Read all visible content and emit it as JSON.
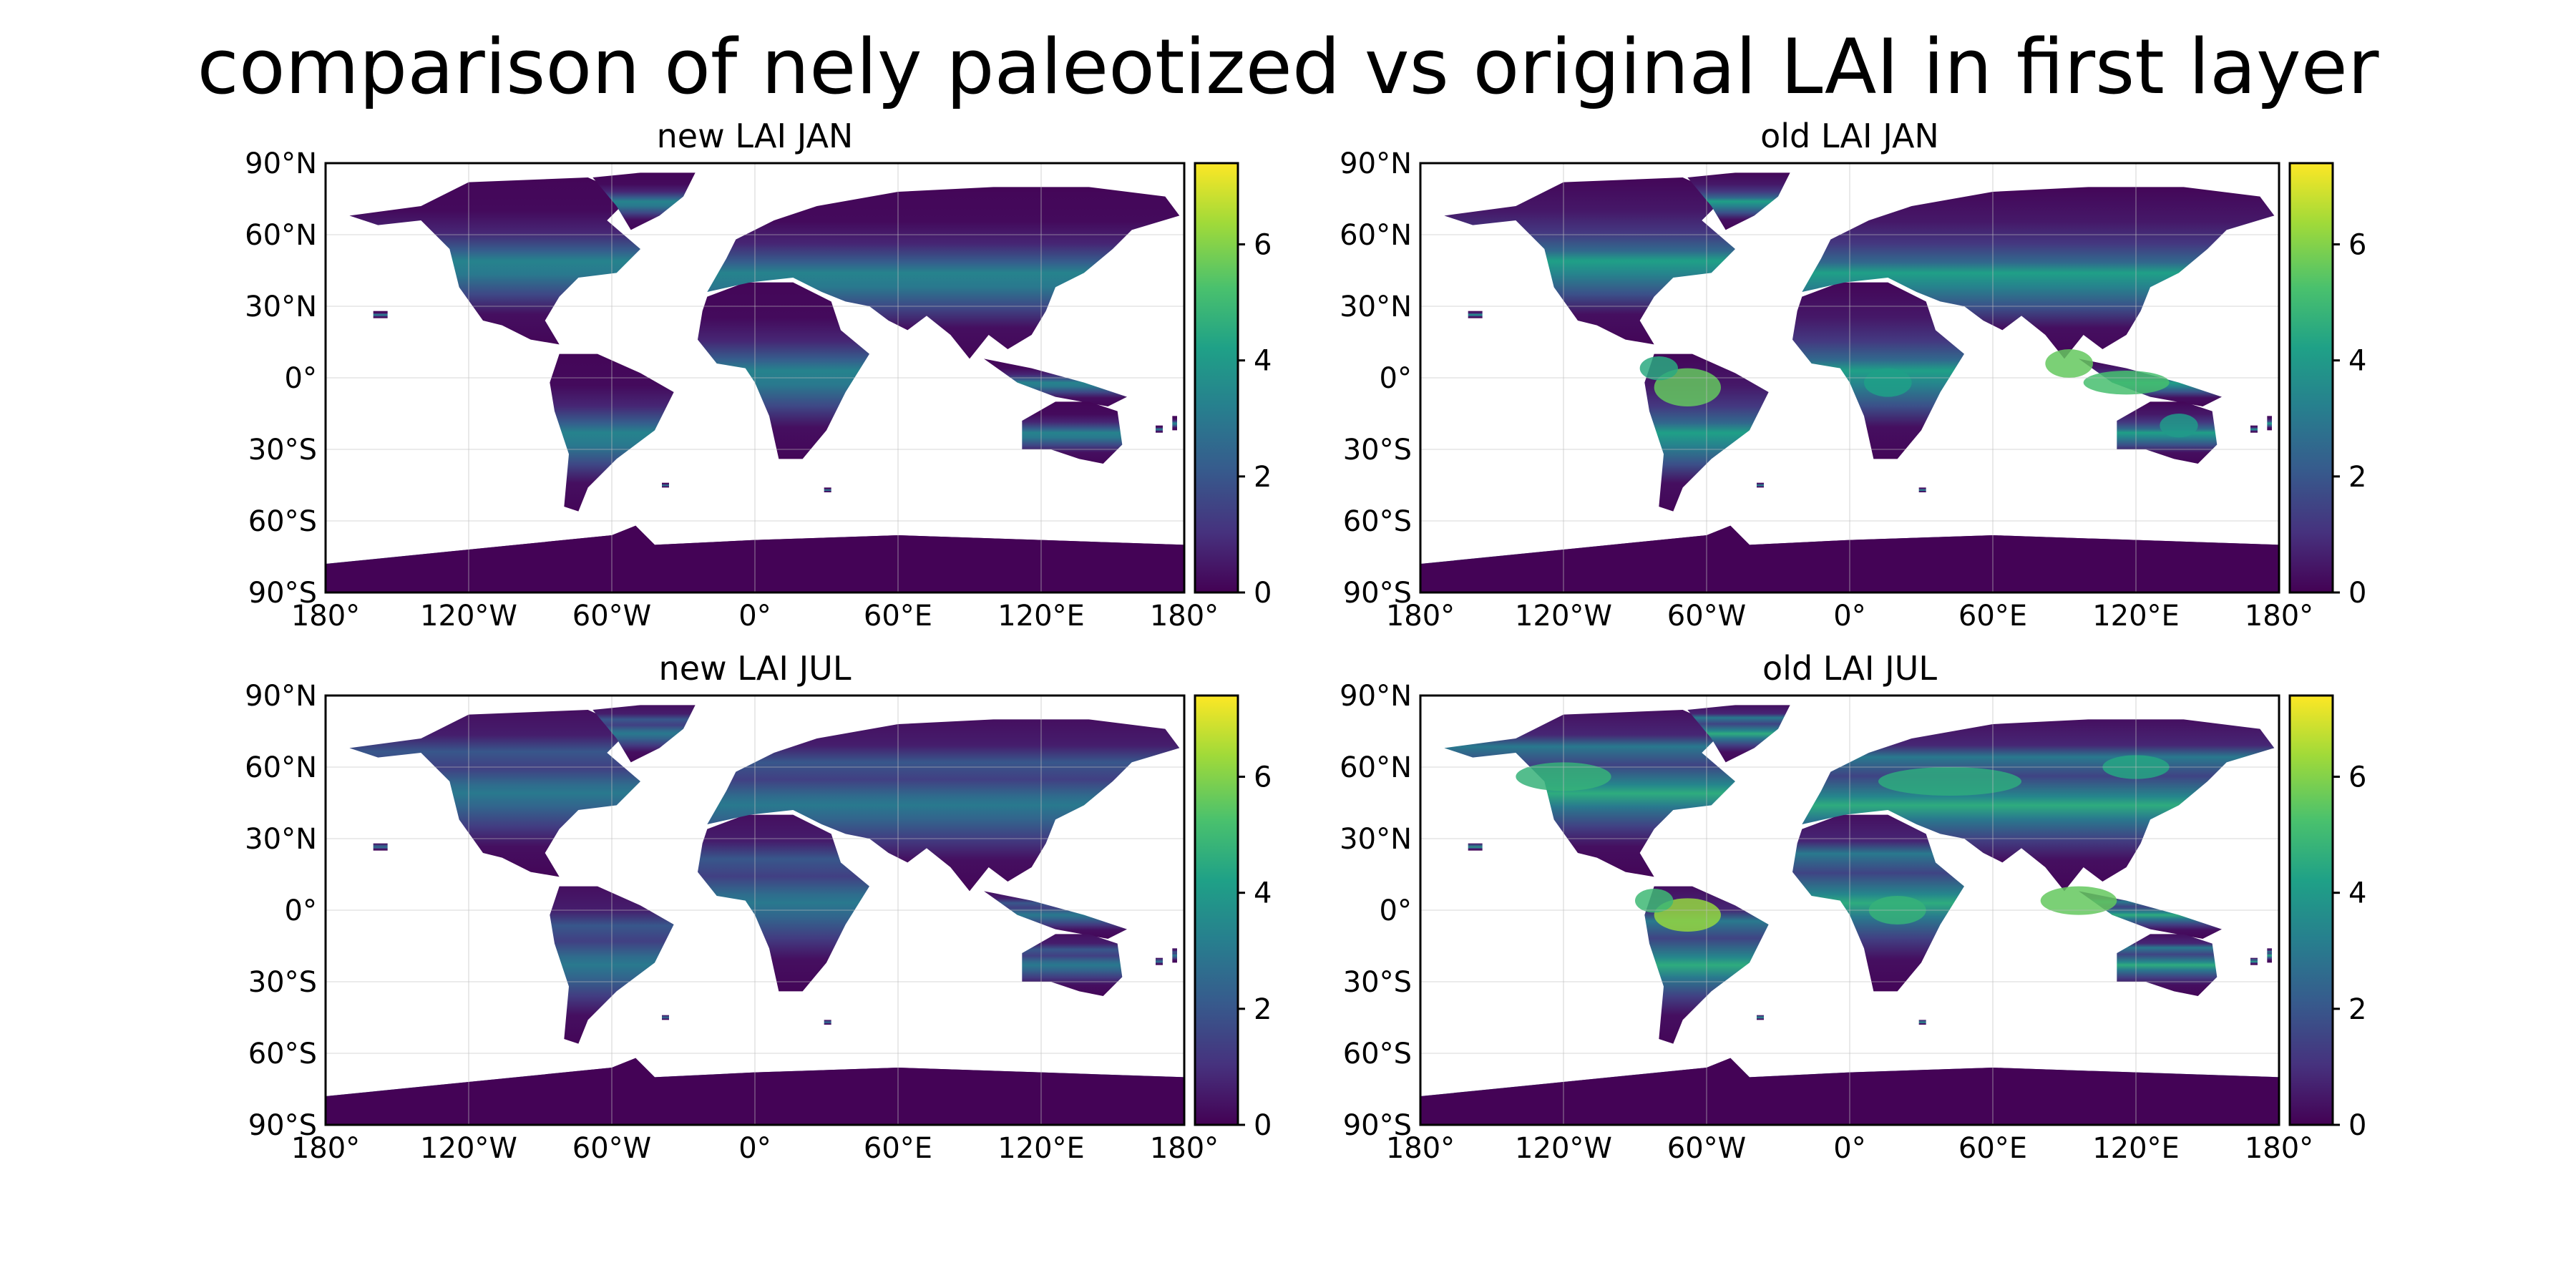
{
  "figure": {
    "suptitle": "comparison of nely paleotized vs original LAI in first layer"
  },
  "axes": {
    "lat_ticks": [
      "90°N",
      "60°N",
      "30°N",
      "0°",
      "30°S",
      "60°S",
      "90°S"
    ],
    "lon_ticks": [
      "180°",
      "120°W",
      "60°W",
      "0°",
      "60°E",
      "120°E",
      "180°"
    ],
    "colorbar_ticks": [
      "0",
      "2",
      "4",
      "6"
    ],
    "colorbar_range": [
      0,
      7.4
    ],
    "colormap": "viridis",
    "colormap_stops": [
      "#440154",
      "#46327e",
      "#365c8d",
      "#277f8e",
      "#1fa187",
      "#4ac16d",
      "#a0da39",
      "#fde725"
    ],
    "ocean_color": "#ffffff",
    "gridlines": true
  },
  "panels": [
    {
      "title": "new LAI JAN",
      "variable": "LAI",
      "month": "JAN",
      "dataset": "new"
    },
    {
      "title": "old LAI JAN",
      "variable": "LAI",
      "month": "JAN",
      "dataset": "old"
    },
    {
      "title": "new LAI JUL",
      "variable": "LAI",
      "month": "JUL",
      "dataset": "new"
    },
    {
      "title": "old LAI JUL",
      "variable": "LAI",
      "month": "JUL",
      "dataset": "old"
    }
  ]
}
